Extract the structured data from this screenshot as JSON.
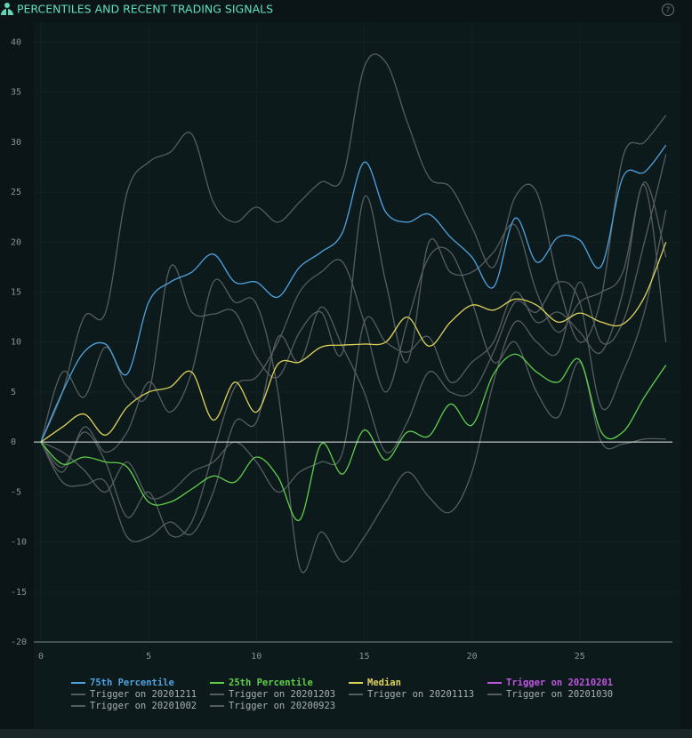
{
  "chart_data": {
    "type": "line",
    "title": "PERCENTILES AND RECENT TRADING SIGNALS",
    "x": [
      0,
      1,
      2,
      3,
      4,
      5,
      6,
      7,
      8,
      9,
      10,
      11,
      12,
      13,
      14,
      15,
      16,
      17,
      18,
      19,
      20,
      21,
      22,
      23,
      24,
      25,
      26,
      27,
      28,
      29
    ],
    "xlim": [
      -0.33,
      29.3
    ],
    "xticks": [
      0,
      5,
      10,
      15,
      20,
      25
    ],
    "ylim": [
      -20,
      42
    ],
    "yticks": [
      -20,
      -15,
      -10,
      -5,
      0,
      5,
      10,
      15,
      20,
      25,
      30,
      35,
      40
    ],
    "grid": true,
    "series": [
      {
        "name": "75th Percentile",
        "color": "#4ea3e0",
        "values": [
          0,
          5,
          9,
          9.8,
          6.8,
          14,
          16,
          17,
          18.8,
          16,
          16,
          14.5,
          17.5,
          19,
          21,
          28,
          23,
          22,
          22.8,
          20.5,
          18.5,
          15.5,
          22.4,
          18,
          20.5,
          20.2,
          17.6,
          26.5,
          27,
          29.7
        ]
      },
      {
        "name": "25th Percentile",
        "color": "#5fcf4a",
        "values": [
          0,
          -2.2,
          -1.5,
          -2,
          -2.5,
          -6,
          -6,
          -4.7,
          -3.4,
          -4,
          -1.5,
          -3.5,
          -7.8,
          -0.2,
          -3.2,
          1.2,
          -1.8,
          1,
          0.6,
          3.8,
          1.7,
          6.8,
          8.8,
          7,
          6,
          8.2,
          1,
          1,
          4.5,
          7.7
        ]
      },
      {
        "name": "Median",
        "color": "#e0d35a",
        "values": [
          0,
          1.5,
          2.8,
          0.7,
          3.5,
          5,
          5.5,
          7,
          2.2,
          6,
          3,
          7.8,
          8,
          9.5,
          9.7,
          9.8,
          10,
          12.5,
          9.6,
          12,
          13.7,
          13.2,
          14.3,
          13.7,
          12,
          12.9,
          12,
          11.8,
          14.5,
          20
        ]
      },
      {
        "name": "Trigger on 20210201",
        "color": "#c056e0",
        "values": [
          null,
          null,
          null,
          null,
          null,
          null,
          null,
          null,
          null,
          null,
          null,
          null,
          null,
          null,
          null,
          null,
          null,
          null,
          null,
          null,
          null,
          null,
          null,
          null,
          null,
          null,
          null,
          null,
          null,
          null
        ]
      },
      {
        "name": "Trigger on 20201211",
        "color": "#565d5e",
        "values": [
          0,
          5,
          12.5,
          13,
          25,
          28,
          29,
          30.8,
          24,
          22,
          23.5,
          22,
          24,
          26,
          26.5,
          37.5,
          38,
          32,
          26.5,
          25.5,
          21.5,
          17.5,
          24.5,
          25,
          16,
          10,
          14.5,
          28.5,
          30,
          32.7
        ]
      },
      {
        "name": "Trigger on 20201203",
        "color": "#565d5e",
        "values": [
          0,
          7,
          4.5,
          9.5,
          5.5,
          5,
          17.5,
          13,
          12.8,
          13,
          8.5,
          6.5,
          11,
          13,
          9,
          24.5,
          16,
          8,
          20,
          17,
          17,
          19,
          21.7,
          15,
          11,
          14,
          15,
          17,
          26,
          18.5
        ]
      },
      {
        "name": "Trigger on 20201113",
        "color": "#565d5e",
        "values": [
          0,
          -3,
          1.5,
          -1,
          1,
          6,
          3,
          7,
          16,
          14,
          13.8,
          5,
          -12.5,
          -9,
          -12,
          -9.5,
          -6,
          -3,
          -5.5,
          -7,
          -3,
          6,
          12,
          10,
          9,
          16,
          10,
          12,
          20,
          28.8
        ]
      },
      {
        "name": "Trigger on 20201030",
        "color": "#565d5e",
        "values": [
          0,
          -4,
          -4.3,
          -4,
          -9.5,
          -9.5,
          -8,
          -9.2,
          -5,
          2,
          2,
          10.5,
          8,
          13.5,
          9.5,
          5,
          -1,
          2,
          7,
          5,
          5,
          9,
          14,
          13,
          16,
          14,
          3.5,
          7,
          13,
          23.2
        ]
      },
      {
        "name": "Trigger on 20201002",
        "color": "#565d5e",
        "values": [
          0,
          -2.5,
          1,
          -2,
          -7.5,
          -5,
          -9.3,
          -8,
          -1,
          5.5,
          6.5,
          10,
          15,
          17,
          18,
          12,
          5,
          12,
          18.5,
          19,
          14,
          8,
          10,
          5,
          2.5,
          8,
          0,
          -0.2,
          0.3,
          0.3
        ]
      },
      {
        "name": "Trigger on 20200923",
        "color": "#565d5e",
        "values": [
          0,
          -1,
          -2.8,
          -5,
          -2,
          -5.5,
          -5,
          -3,
          -2,
          0,
          -2,
          -5,
          -3,
          -2,
          -1,
          12,
          10,
          9,
          10.5,
          6,
          8,
          10,
          15,
          12,
          13,
          11,
          9,
          15,
          25.7,
          10
        ]
      }
    ]
  }
}
